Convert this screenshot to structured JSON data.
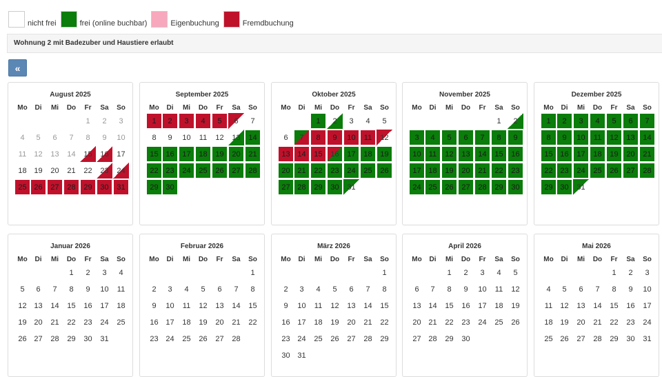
{
  "colors": {
    "nicht_frei": "#ffffff",
    "frei": "#0a7d0a",
    "eigenbuchung": "#f8a8bc",
    "fremdbuchung": "#c0112b"
  },
  "legend": [
    {
      "label": "nicht frei",
      "color": "#ffffff"
    },
    {
      "label": "frei (online buchbar)",
      "color": "#0a7d0a"
    },
    {
      "label": "Eigenbuchung",
      "color": "#f8a8bc"
    },
    {
      "label": "Fremdbuchung",
      "color": "#c0112b"
    }
  ],
  "title": "Wohnung 2 mit Badezuber und Haustiere erlaubt",
  "back_button": {
    "label": "«",
    "icon": "double-chevron-left-icon"
  },
  "weekdays": [
    "Mo",
    "Di",
    "Mi",
    "Do",
    "Fr",
    "Sa",
    "So"
  ],
  "months": [
    {
      "title": "August 2025",
      "offset": 4,
      "days": 31,
      "past": [
        1,
        2,
        3,
        4,
        5,
        6,
        7,
        8,
        9,
        10,
        11,
        12,
        13,
        14
      ],
      "free": [],
      "busy": [
        25,
        26,
        27,
        28,
        29,
        30,
        31
      ],
      "white_busy": [
        15,
        16,
        23,
        24
      ],
      "busy_white": [],
      "white_free": [],
      "free_white": [],
      "free_busy": [],
      "busy_free": []
    },
    {
      "title": "September 2025",
      "offset": 0,
      "days": 30,
      "past": [],
      "free": [
        14,
        15,
        16,
        17,
        18,
        19,
        20,
        21,
        22,
        23,
        24,
        25,
        26,
        27,
        28,
        29,
        30
      ],
      "busy": [
        1,
        2,
        3,
        4,
        5
      ],
      "white_busy": [],
      "busy_white": [
        6
      ],
      "white_free": [
        13
      ],
      "free_white": [],
      "free_busy": [],
      "busy_free": []
    },
    {
      "title": "Oktober 2025",
      "offset": 2,
      "days": 31,
      "past": [],
      "free": [
        1,
        17,
        18,
        19,
        20,
        21,
        22,
        23,
        24,
        25,
        26,
        27,
        28,
        29,
        30
      ],
      "busy": [
        8,
        9,
        10,
        11,
        13,
        14,
        15
      ],
      "white_busy": [],
      "busy_white": [
        12
      ],
      "white_free": [
        2
      ],
      "free_white": [
        31
      ],
      "free_busy": [
        7
      ],
      "busy_free": [
        16
      ]
    },
    {
      "title": "November 2025",
      "offset": 5,
      "days": 30,
      "past": [],
      "free": [
        3,
        4,
        5,
        6,
        7,
        8,
        9,
        10,
        11,
        12,
        13,
        14,
        15,
        16,
        17,
        18,
        19,
        20,
        21,
        22,
        23,
        24,
        25,
        26,
        27,
        28,
        29,
        30
      ],
      "busy": [],
      "white_busy": [],
      "busy_white": [],
      "white_free": [
        2
      ],
      "free_white": [],
      "free_busy": [],
      "busy_free": []
    },
    {
      "title": "Dezember 2025",
      "offset": 0,
      "days": 31,
      "past": [],
      "free": [
        1,
        2,
        3,
        4,
        5,
        6,
        7,
        8,
        9,
        10,
        11,
        12,
        13,
        14,
        15,
        16,
        17,
        18,
        19,
        20,
        21,
        22,
        23,
        24,
        25,
        26,
        27,
        28,
        29,
        30
      ],
      "busy": [],
      "white_busy": [],
      "busy_white": [],
      "white_free": [],
      "free_white": [
        31
      ],
      "free_busy": [],
      "busy_free": []
    },
    {
      "title": "Januar 2026",
      "offset": 3,
      "days": 31,
      "past": [],
      "free": [],
      "busy": [],
      "white_busy": [],
      "busy_white": [],
      "white_free": [],
      "free_white": [],
      "free_busy": [],
      "busy_free": []
    },
    {
      "title": "Februar 2026",
      "offset": 6,
      "days": 28,
      "past": [],
      "free": [],
      "busy": [],
      "white_busy": [],
      "busy_white": [],
      "white_free": [],
      "free_white": [],
      "free_busy": [],
      "busy_free": []
    },
    {
      "title": "März 2026",
      "offset": 6,
      "days": 31,
      "past": [],
      "free": [],
      "busy": [],
      "white_busy": [],
      "busy_white": [],
      "white_free": [],
      "free_white": [],
      "free_busy": [],
      "busy_free": []
    },
    {
      "title": "April 2026",
      "offset": 2,
      "days": 30,
      "past": [],
      "free": [],
      "busy": [],
      "white_busy": [],
      "busy_white": [],
      "white_free": [],
      "free_white": [],
      "free_busy": [],
      "busy_free": []
    },
    {
      "title": "Mai 2026",
      "offset": 4,
      "days": 31,
      "past": [],
      "free": [],
      "busy": [],
      "white_busy": [],
      "busy_white": [],
      "white_free": [],
      "free_white": [],
      "free_busy": [],
      "busy_free": []
    }
  ]
}
